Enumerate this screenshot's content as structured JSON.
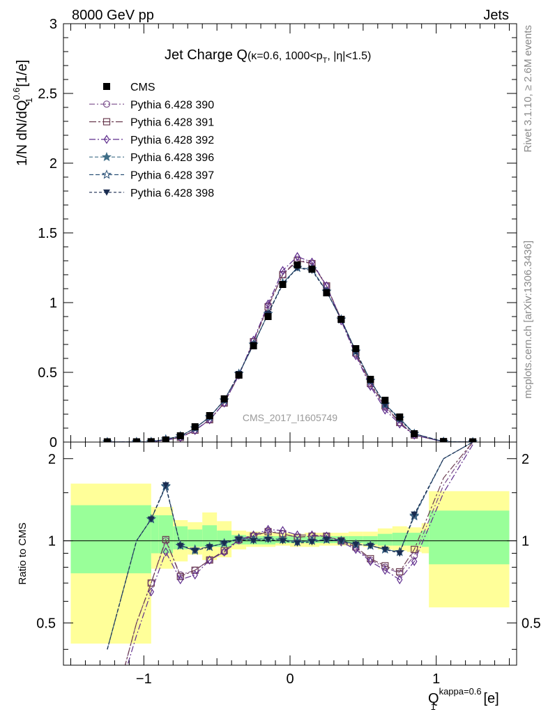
{
  "header": {
    "left": "8000 GeV pp",
    "right": "Jets"
  },
  "side_labels": {
    "upper": "Rivet 3.1.10, ≥ 2.6M events",
    "lower": "mcplots.cern.ch [arXiv:1306.3436]"
  },
  "title": {
    "main": "Jet Charge Q",
    "condition": "(κ=0.6, 1000<p",
    "condition_sub": "T",
    "condition_end": ", |η|<1.5)"
  },
  "watermark": "CMS_2017_I1605749",
  "y_axis": {
    "main_base": "1/N dN/dQ",
    "main_sup": "0.6",
    "main_sub": "1",
    "main_unit": " [1/e]",
    "ratio": "Ratio to CMS"
  },
  "x_axis": {
    "base": "Q",
    "sup": "kappa=0.6",
    "sub": "1",
    "unit": " [e]"
  },
  "colors": {
    "s390": "#7b4f8c",
    "s391": "#6b3c50",
    "s392": "#5e2c8c",
    "s396": "#3f6e87",
    "s397": "#2c5278",
    "s398": "#1a2c50",
    "band_outer": "#ffff99",
    "band_inner": "#99ff99"
  },
  "chart_data": {
    "type": "line",
    "x_range": [
      -1.55,
      1.55
    ],
    "ylim_main": [
      0,
      3
    ],
    "ylim_ratio": [
      0.35,
      2.3
    ],
    "ratio_log_scale": true,
    "x_ticks": [
      {
        "v": -1,
        "label": "−1"
      },
      {
        "v": 0,
        "label": "0"
      },
      {
        "v": 1,
        "label": "1"
      }
    ],
    "y_ticks_main": [
      {
        "v": 0,
        "label": "0"
      },
      {
        "v": 0.5,
        "label": "0.5"
      },
      {
        "v": 1,
        "label": "1"
      },
      {
        "v": 1.5,
        "label": "1.5"
      },
      {
        "v": 2,
        "label": "2"
      },
      {
        "v": 2.5,
        "label": "2.5"
      },
      {
        "v": 3,
        "label": "3"
      }
    ],
    "y_ticks_ratio": [
      {
        "v": 0.5,
        "label": "0.5"
      },
      {
        "v": 1,
        "label": "1"
      },
      {
        "v": 2,
        "label": "2"
      }
    ],
    "x": [
      -1.25,
      -1.05,
      -0.95,
      -0.85,
      -0.75,
      -0.65,
      -0.55,
      -0.45,
      -0.35,
      -0.25,
      -0.15,
      -0.05,
      0.05,
      0.15,
      0.25,
      0.35,
      0.45,
      0.55,
      0.65,
      0.75,
      0.85,
      1.05,
      1.25
    ],
    "bin_edges": [
      -1.5,
      -0.95,
      -0.9,
      -0.8,
      -0.7,
      -0.6,
      -0.5,
      -0.4,
      -0.3,
      -0.2,
      -0.1,
      0.0,
      0.1,
      0.2,
      0.3,
      0.4,
      0.5,
      0.6,
      0.7,
      0.8,
      0.9,
      0.95,
      1.5
    ],
    "cms": {
      "name": "CMS",
      "marker": "square",
      "values": [
        0.002,
        0.002,
        0.003,
        0.015,
        0.045,
        0.11,
        0.19,
        0.31,
        0.48,
        0.69,
        0.9,
        1.13,
        1.27,
        1.24,
        1.07,
        0.88,
        0.67,
        0.45,
        0.3,
        0.18,
        0.06,
        0.004,
        0.002
      ],
      "band_outer": [
        [
          0.42,
          1.62
        ],
        [
          0.79,
          1.33
        ],
        [
          0.79,
          1.33
        ],
        [
          0.84,
          1.19
        ],
        [
          0.89,
          1.17
        ],
        [
          0.85,
          1.27
        ],
        [
          0.87,
          1.18
        ],
        [
          0.93,
          1.09
        ],
        [
          0.95,
          1.08
        ],
        [
          0.95,
          1.07
        ],
        [
          0.96,
          1.07
        ],
        [
          0.95,
          1.06
        ],
        [
          0.95,
          1.07
        ],
        [
          0.96,
          1.07
        ],
        [
          0.96,
          1.07
        ],
        [
          0.96,
          1.08
        ],
        [
          0.95,
          1.08
        ],
        [
          0.93,
          1.11
        ],
        [
          0.92,
          1.13
        ],
        [
          0.91,
          1.12
        ],
        [
          0.9,
          1.16
        ],
        [
          0.57,
          1.52
        ],
        [
          0.57,
          1.52
        ]
      ],
      "band_inner": [
        [
          0.76,
          1.35
        ],
        [
          0.9,
          1.24
        ],
        [
          0.9,
          1.24
        ],
        [
          0.93,
          1.13
        ],
        [
          0.95,
          1.1
        ],
        [
          0.95,
          1.14
        ],
        [
          0.95,
          1.09
        ],
        [
          0.97,
          1.05
        ],
        [
          0.97,
          1.04
        ],
        [
          0.97,
          1.04
        ],
        [
          0.98,
          1.04
        ],
        [
          0.98,
          1.04
        ],
        [
          0.98,
          1.04
        ],
        [
          0.98,
          1.04
        ],
        [
          0.98,
          1.04
        ],
        [
          0.98,
          1.04
        ],
        [
          0.97,
          1.04
        ],
        [
          0.96,
          1.06
        ],
        [
          0.96,
          1.07
        ],
        [
          0.96,
          1.07
        ],
        [
          0.95,
          1.09
        ],
        [
          0.82,
          1.29
        ],
        [
          0.82,
          1.29
        ]
      ]
    },
    "series": [
      {
        "name": "Pythia 6.428 390",
        "key": "s390",
        "marker": "circle-open",
        "dash": "8 3 2 3",
        "values": [
          0.0004,
          0.001,
          0.002,
          0.015,
          0.034,
          0.086,
          0.16,
          0.28,
          0.48,
          0.72,
          0.98,
          1.2,
          1.31,
          1.28,
          1.12,
          0.88,
          0.63,
          0.41,
          0.25,
          0.14,
          0.05,
          0.003,
          0.0002
        ],
        "ratio": [
          0.2,
          0.5,
          0.7,
          1.0,
          0.75,
          0.78,
          0.85,
          0.91,
          1.0,
          1.04,
          1.09,
          1.06,
          1.03,
          1.04,
          1.04,
          1.0,
          0.94,
          0.85,
          0.8,
          0.76,
          0.88,
          1.6,
          2.3
        ]
      },
      {
        "name": "Pythia 6.428 391",
        "key": "s391",
        "marker": "square-open",
        "dash": "10 3 3 3",
        "values": [
          0.0004,
          0.001,
          0.002,
          0.015,
          0.033,
          0.085,
          0.16,
          0.28,
          0.48,
          0.72,
          0.97,
          1.2,
          1.3,
          1.28,
          1.12,
          0.88,
          0.64,
          0.42,
          0.26,
          0.14,
          0.05,
          0.003,
          0.0002
        ],
        "ratio": [
          0.2,
          0.5,
          0.7,
          1.01,
          0.74,
          0.78,
          0.85,
          0.92,
          1.01,
          1.04,
          1.08,
          1.06,
          1.03,
          1.04,
          1.04,
          1.0,
          0.95,
          0.86,
          0.81,
          0.77,
          0.93,
          1.7,
          2.3
        ]
      },
      {
        "name": "Pythia 6.428 392",
        "key": "s392",
        "marker": "diamond-open",
        "dash": "9 3 2 3",
        "values": [
          0.0003,
          0.001,
          0.002,
          0.014,
          0.032,
          0.083,
          0.16,
          0.28,
          0.48,
          0.73,
          0.99,
          1.23,
          1.33,
          1.29,
          1.12,
          0.87,
          0.62,
          0.4,
          0.23,
          0.13,
          0.05,
          0.002,
          0.0002
        ],
        "ratio": [
          0.2,
          0.45,
          0.65,
          0.91,
          0.72,
          0.75,
          0.85,
          0.91,
          1.01,
          1.05,
          1.1,
          1.09,
          1.05,
          1.05,
          1.04,
          0.99,
          0.93,
          0.84,
          0.78,
          0.72,
          0.84,
          1.5,
          2.25
        ]
      },
      {
        "name": "Pythia 6.428 396",
        "key": "s396",
        "marker": "star-filled",
        "dash": "5 3",
        "values": [
          0.0006,
          0.001,
          0.002,
          0.02,
          0.043,
          0.1,
          0.18,
          0.3,
          0.49,
          0.7,
          0.92,
          1.14,
          1.25,
          1.24,
          1.08,
          0.88,
          0.65,
          0.44,
          0.27,
          0.17,
          0.06,
          0.003,
          0.0002
        ],
        "ratio": [
          0.4,
          1.0,
          1.2,
          1.59,
          0.96,
          0.92,
          0.95,
          0.98,
          1.02,
          1.01,
          1.02,
          1.01,
          0.99,
          1.0,
          1.01,
          1.0,
          0.97,
          0.96,
          0.93,
          0.91,
          1.24,
          2.0,
          2.3
        ]
      },
      {
        "name": "Pythia 6.428 397",
        "key": "s397",
        "marker": "star-open",
        "dash": "6 3",
        "values": [
          0.0006,
          0.001,
          0.002,
          0.02,
          0.043,
          0.1,
          0.18,
          0.3,
          0.49,
          0.7,
          0.92,
          1.14,
          1.25,
          1.24,
          1.08,
          0.88,
          0.65,
          0.44,
          0.27,
          0.17,
          0.06,
          0.003,
          0.0002
        ],
        "ratio": [
          0.4,
          1.0,
          1.2,
          1.58,
          0.96,
          0.93,
          0.95,
          0.98,
          1.02,
          1.01,
          1.02,
          1.01,
          0.99,
          1.0,
          1.01,
          1.0,
          0.97,
          0.96,
          0.93,
          0.91,
          1.23,
          2.0,
          2.3
        ]
      },
      {
        "name": "Pythia 6.428 398",
        "key": "s398",
        "marker": "triangle-down-filled",
        "dash": "4 3",
        "values": [
          0.0006,
          0.001,
          0.002,
          0.02,
          0.043,
          0.1,
          0.18,
          0.3,
          0.49,
          0.7,
          0.92,
          1.13,
          1.25,
          1.23,
          1.08,
          0.88,
          0.65,
          0.44,
          0.27,
          0.16,
          0.06,
          0.003,
          0.0002
        ],
        "ratio": [
          0.4,
          1.0,
          1.2,
          1.6,
          0.96,
          0.92,
          0.95,
          0.98,
          1.01,
          1.0,
          1.01,
          1.0,
          0.98,
          0.99,
          1.01,
          1.0,
          0.97,
          0.96,
          0.93,
          0.9,
          1.25,
          2.0,
          2.3
        ]
      }
    ]
  }
}
